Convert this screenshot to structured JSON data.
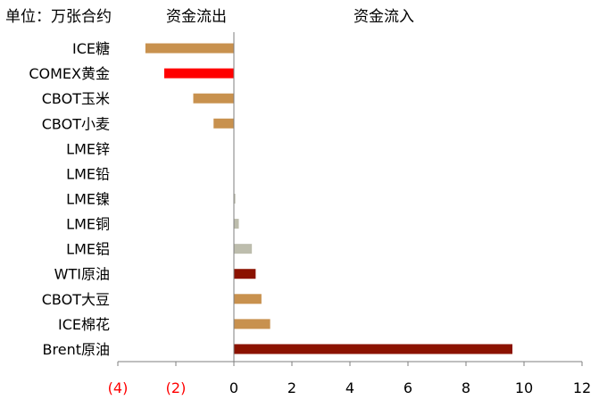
{
  "chart_data": {
    "type": "bar",
    "orientation": "horizontal",
    "unit_label": "单位：万张合约",
    "outflow_label": "资金流出",
    "inflow_label": "资金流入",
    "xlim": [
      -4,
      12
    ],
    "x_ticks": [
      -4,
      -2,
      0,
      2,
      4,
      6,
      8,
      10,
      12
    ],
    "x_tick_labels": [
      "(4)",
      "(2)",
      "0",
      "2",
      "4",
      "6",
      "8",
      "10",
      "12"
    ],
    "negative_tick_color": "#ff0000",
    "grid": false,
    "categories": [
      "ICE糖",
      "COMEX黄金",
      "CBOT玉米",
      "CBOT小麦",
      "LME锌",
      "LME铅",
      "LME镍",
      "LME铜",
      "LME铝",
      "WTI原油",
      "CBOT大豆",
      "ICE棉花",
      "Brent原油"
    ],
    "values": [
      -3.05,
      -2.4,
      -1.4,
      -0.7,
      0.0,
      0.0,
      0.05,
      0.17,
      0.62,
      0.75,
      0.95,
      1.25,
      9.6
    ],
    "colors": [
      "#c8914e",
      "#ff0000",
      "#c8914e",
      "#c8914e",
      "#bdbdad",
      "#bdbdad",
      "#bdbdad",
      "#bdbdad",
      "#bdbdad",
      "#8b1200",
      "#c8914e",
      "#c8914e",
      "#8b1200"
    ]
  }
}
